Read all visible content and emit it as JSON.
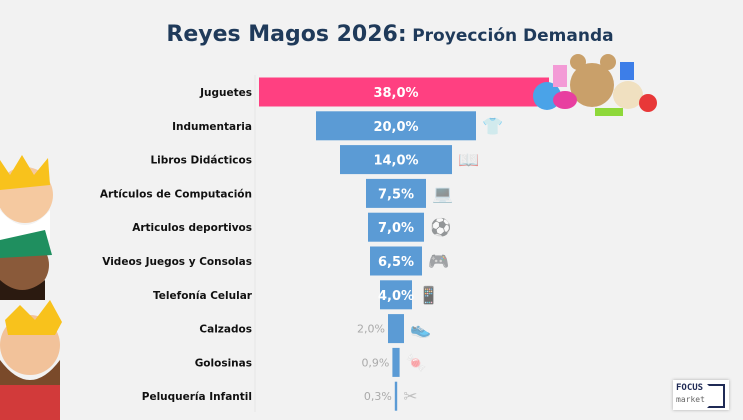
{
  "chart_data": {
    "type": "bar",
    "orientation": "horizontal-funnel",
    "title": "Reyes Magos 2026:",
    "subtitle": "Proyección Demanda",
    "categories": [
      "Juguetes",
      "Indumentaria",
      "Libros Didácticos",
      "Artículos de Computación",
      "Articulos deportivos",
      "Videos Juegos y Consolas",
      "Telefonía Celular",
      "Calzados",
      "Golosinas",
      "Peluquería Infantil"
    ],
    "values": [
      38.0,
      20.0,
      14.0,
      7.5,
      7.0,
      6.5,
      4.0,
      2.0,
      0.9,
      0.3
    ],
    "value_labels": [
      "38,0%",
      "20,0%",
      "14,0%",
      "7,5%",
      "7,0%",
      "6,5%",
      "4,0%",
      "2,0%",
      "0,9%",
      "0,3%"
    ],
    "icons": [
      "toys-icon",
      "tshirt-icon",
      "book-icon",
      "laptop-icon",
      "soccer-ball-icon",
      "game-console-icon",
      "smartphone-icon",
      "sneakers-icon",
      "candy-icon",
      "scissors-comb-icon"
    ],
    "colors": {
      "highlight": "#ff4081",
      "bar": "#5b9bd5",
      "title": "#1f3a5a",
      "outside_label": "#aaaaaa"
    },
    "grid": false,
    "legend": "none"
  },
  "logo": {
    "line1": "FOCUS",
    "line2": "market"
  }
}
